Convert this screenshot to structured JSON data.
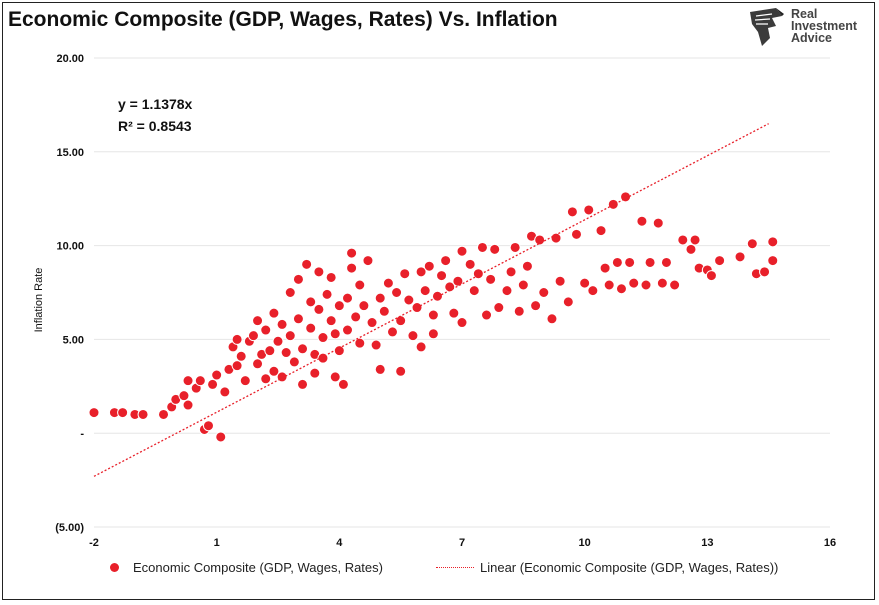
{
  "header": {
    "title": "Economic Composite (GDP, Wages, Rates) Vs. Inflation"
  },
  "logo": {
    "line1": "Real",
    "line2": "Investment",
    "line3": "Advice"
  },
  "regression": {
    "equation": "y = 1.1378x",
    "r_squared": "R² = 0.8543"
  },
  "colors": {
    "point": "#e8202a",
    "point_stroke": "#ffffff",
    "trend": "#e8202a",
    "grid": "#e6e6e6",
    "axis_text": "#111111"
  },
  "chart_data": {
    "type": "scatter",
    "title": "Economic Composite (GDP, Wages, Rates) Vs. Inflation",
    "xlabel": "",
    "ylabel": "Inflation Rate",
    "xlim": [
      -2,
      16
    ],
    "ylim": [
      -5,
      20
    ],
    "x_ticks": [
      "-2",
      "1",
      "4",
      "7",
      "10",
      "13",
      "16"
    ],
    "x_tick_values": [
      -2,
      1,
      4,
      7,
      10,
      13,
      16
    ],
    "y_ticks": [
      "(5.00)",
      "-",
      "5.00",
      "10.00",
      "15.00",
      "20.00"
    ],
    "y_tick_values": [
      -5,
      0,
      5,
      10,
      15,
      20
    ],
    "grid": "horizontal",
    "legend_position": "bottom",
    "series": [
      {
        "name": "Economic Composite (GDP, Wages, Rates)",
        "kind": "scatter",
        "points": [
          [
            -2.0,
            1.1
          ],
          [
            -1.5,
            1.1
          ],
          [
            -1.3,
            1.1
          ],
          [
            -1.0,
            1.0
          ],
          [
            -0.8,
            1.0
          ],
          [
            -0.3,
            1.0
          ],
          [
            -0.1,
            1.4
          ],
          [
            0.0,
            1.8
          ],
          [
            0.2,
            2.0
          ],
          [
            0.3,
            2.8
          ],
          [
            0.3,
            1.5
          ],
          [
            0.5,
            2.4
          ],
          [
            0.6,
            2.8
          ],
          [
            0.7,
            0.2
          ],
          [
            0.8,
            0.4
          ],
          [
            0.9,
            2.6
          ],
          [
            1.1,
            -0.2
          ],
          [
            1.0,
            3.1
          ],
          [
            1.2,
            2.2
          ],
          [
            1.3,
            3.4
          ],
          [
            1.4,
            4.6
          ],
          [
            1.5,
            3.6
          ],
          [
            1.5,
            5.0
          ],
          [
            1.6,
            4.1
          ],
          [
            1.7,
            2.8
          ],
          [
            1.8,
            4.9
          ],
          [
            1.9,
            5.2
          ],
          [
            2.0,
            3.7
          ],
          [
            2.0,
            6.0
          ],
          [
            2.1,
            4.2
          ],
          [
            2.2,
            5.5
          ],
          [
            2.2,
            2.9
          ],
          [
            2.3,
            4.4
          ],
          [
            2.4,
            6.4
          ],
          [
            2.4,
            3.3
          ],
          [
            2.5,
            4.9
          ],
          [
            2.6,
            5.8
          ],
          [
            2.6,
            3.0
          ],
          [
            2.7,
            4.3
          ],
          [
            2.8,
            7.5
          ],
          [
            2.8,
            5.2
          ],
          [
            2.9,
            3.8
          ],
          [
            3.0,
            8.2
          ],
          [
            3.0,
            6.1
          ],
          [
            3.1,
            4.5
          ],
          [
            3.1,
            2.6
          ],
          [
            3.2,
            9.0
          ],
          [
            3.3,
            5.6
          ],
          [
            3.3,
            7.0
          ],
          [
            3.4,
            4.2
          ],
          [
            3.4,
            3.2
          ],
          [
            3.5,
            8.6
          ],
          [
            3.5,
            6.6
          ],
          [
            3.6,
            5.1
          ],
          [
            3.6,
            4.0
          ],
          [
            3.7,
            7.4
          ],
          [
            3.8,
            6.0
          ],
          [
            3.8,
            8.3
          ],
          [
            3.9,
            3.0
          ],
          [
            3.9,
            5.3
          ],
          [
            4.0,
            6.8
          ],
          [
            4.0,
            4.4
          ],
          [
            4.1,
            2.6
          ],
          [
            4.2,
            7.2
          ],
          [
            4.2,
            5.5
          ],
          [
            4.3,
            8.8
          ],
          [
            4.3,
            9.6
          ],
          [
            4.4,
            6.2
          ],
          [
            4.5,
            4.8
          ],
          [
            4.5,
            7.9
          ],
          [
            4.6,
            6.8
          ],
          [
            4.7,
            9.2
          ],
          [
            4.8,
            5.9
          ],
          [
            4.9,
            4.7
          ],
          [
            5.0,
            7.2
          ],
          [
            5.0,
            3.4
          ],
          [
            5.1,
            6.5
          ],
          [
            5.2,
            8.0
          ],
          [
            5.3,
            5.4
          ],
          [
            5.4,
            7.5
          ],
          [
            5.5,
            6.0
          ],
          [
            5.5,
            3.3
          ],
          [
            5.6,
            8.5
          ],
          [
            5.7,
            7.1
          ],
          [
            5.8,
            5.2
          ],
          [
            5.9,
            6.7
          ],
          [
            6.0,
            8.6
          ],
          [
            6.0,
            4.6
          ],
          [
            6.1,
            7.6
          ],
          [
            6.2,
            8.9
          ],
          [
            6.3,
            6.3
          ],
          [
            6.3,
            5.3
          ],
          [
            6.4,
            7.3
          ],
          [
            6.5,
            8.4
          ],
          [
            6.6,
            9.2
          ],
          [
            6.7,
            7.8
          ],
          [
            6.8,
            6.4
          ],
          [
            6.9,
            8.1
          ],
          [
            7.0,
            9.7
          ],
          [
            7.0,
            5.9
          ],
          [
            7.2,
            9.0
          ],
          [
            7.3,
            7.6
          ],
          [
            7.4,
            8.5
          ],
          [
            7.5,
            9.9
          ],
          [
            7.6,
            6.3
          ],
          [
            7.7,
            8.2
          ],
          [
            7.8,
            9.8
          ],
          [
            7.9,
            6.7
          ],
          [
            8.1,
            7.6
          ],
          [
            8.2,
            8.6
          ],
          [
            8.3,
            9.9
          ],
          [
            8.4,
            6.5
          ],
          [
            8.5,
            7.9
          ],
          [
            8.6,
            8.9
          ],
          [
            8.7,
            10.5
          ],
          [
            8.8,
            6.8
          ],
          [
            8.9,
            10.3
          ],
          [
            9.0,
            7.5
          ],
          [
            9.2,
            6.1
          ],
          [
            9.3,
            10.4
          ],
          [
            9.4,
            8.1
          ],
          [
            9.6,
            7.0
          ],
          [
            9.7,
            11.8
          ],
          [
            9.8,
            10.6
          ],
          [
            10.0,
            8.0
          ],
          [
            10.1,
            11.9
          ],
          [
            10.2,
            7.6
          ],
          [
            10.4,
            10.8
          ],
          [
            10.5,
            8.8
          ],
          [
            10.6,
            7.9
          ],
          [
            10.7,
            12.2
          ],
          [
            10.8,
            9.1
          ],
          [
            10.9,
            7.7
          ],
          [
            11.0,
            12.6
          ],
          [
            11.1,
            9.1
          ],
          [
            11.2,
            8.0
          ],
          [
            11.4,
            11.3
          ],
          [
            11.5,
            7.9
          ],
          [
            11.6,
            9.1
          ],
          [
            11.8,
            11.2
          ],
          [
            11.9,
            8.0
          ],
          [
            12.0,
            9.1
          ],
          [
            12.2,
            7.9
          ],
          [
            12.4,
            10.3
          ],
          [
            12.6,
            9.8
          ],
          [
            12.7,
            10.3
          ],
          [
            12.8,
            8.8
          ],
          [
            13.0,
            8.7
          ],
          [
            13.1,
            8.4
          ],
          [
            13.3,
            9.2
          ],
          [
            13.8,
            9.4
          ],
          [
            14.1,
            10.1
          ],
          [
            14.2,
            8.5
          ],
          [
            14.4,
            8.6
          ],
          [
            14.6,
            10.2
          ],
          [
            14.6,
            9.2
          ]
        ]
      },
      {
        "name": "Linear (Economic Composite (GDP, Wages, Rates))",
        "kind": "trendline",
        "x": [
          -2.0,
          14.5
        ],
        "y": [
          -2.3,
          16.5
        ]
      }
    ]
  }
}
